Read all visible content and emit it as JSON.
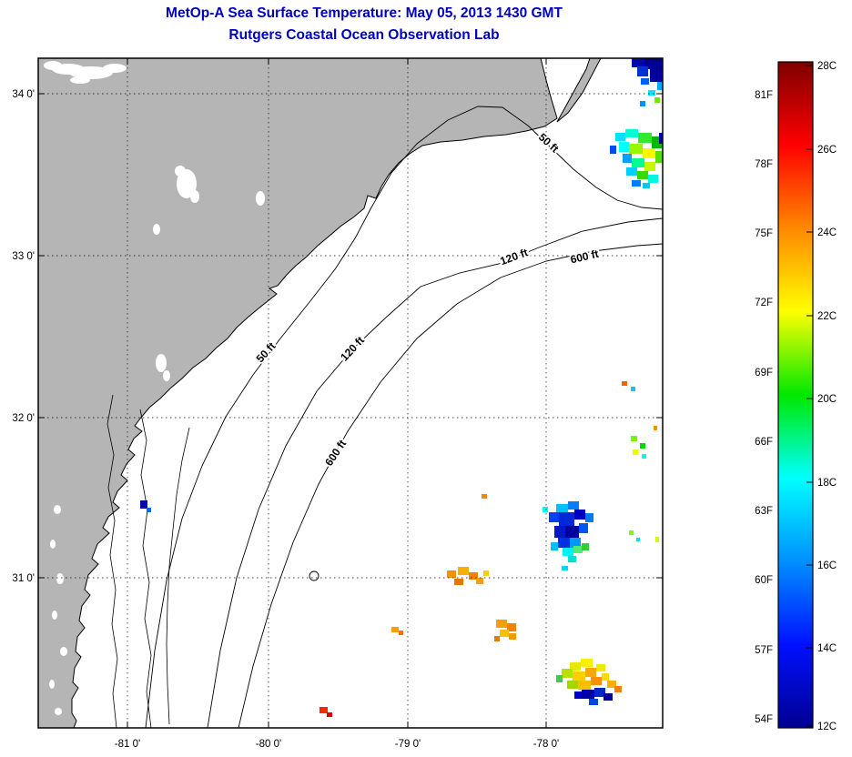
{
  "header": {
    "title": "MetOp-A Sea Surface Temperature:  May 05, 2013 1430 GMT",
    "subtitle": "Rutgers Coastal Ocean Observation Lab",
    "title_color": "#0000BF"
  },
  "map": {
    "land_color": "#b5b5b5",
    "x_ticks": [
      "-81 0'",
      "-80 0'",
      "-79 0'",
      "-78 0'"
    ],
    "y_ticks": [
      "34 0'",
      "33 0'",
      "32 0'",
      "31 0'"
    ],
    "contour_labels": [
      "50 ft",
      "50 ft",
      "120 ft",
      "120 ft",
      "600 ft",
      "600 ft"
    ],
    "sst_cells": [
      [
        694,
        64,
        14,
        10,
        "#0008A8"
      ],
      [
        708,
        64,
        20,
        12,
        "#000090"
      ],
      [
        700,
        73,
        12,
        11,
        "#0030D8"
      ],
      [
        714,
        76,
        14,
        14,
        "#0000A0"
      ],
      [
        722,
        90,
        6,
        9,
        "#00A8FF"
      ],
      [
        704,
        86,
        9,
        7,
        "#0060F0"
      ],
      [
        712,
        99,
        8,
        6,
        "#00E8FF"
      ],
      [
        719,
        107,
        6,
        6,
        "#70E800"
      ],
      [
        703,
        111,
        6,
        6,
        "#0090FF"
      ],
      [
        676,
        146,
        11,
        9,
        "#00E0FF"
      ],
      [
        687,
        142,
        14,
        9,
        "#00FFD8"
      ],
      [
        701,
        146,
        15,
        11,
        "#30E830"
      ],
      [
        716,
        150,
        12,
        13,
        "#00B800"
      ],
      [
        680,
        156,
        11,
        11,
        "#00FFFF"
      ],
      [
        691,
        158,
        15,
        11,
        "#98F800"
      ],
      [
        706,
        163,
        14,
        11,
        "#F8F800"
      ],
      [
        720,
        166,
        8,
        13,
        "#58E000"
      ],
      [
        684,
        169,
        10,
        10,
        "#00A0FF"
      ],
      [
        694,
        174,
        14,
        10,
        "#00FF90"
      ],
      [
        708,
        178,
        12,
        10,
        "#C8F800"
      ],
      [
        688,
        184,
        12,
        9,
        "#00D0FF"
      ],
      [
        700,
        188,
        12,
        9,
        "#38D800"
      ],
      [
        712,
        192,
        11,
        9,
        "#00F8E0"
      ],
      [
        694,
        198,
        10,
        7,
        "#0080FF"
      ],
      [
        706,
        201,
        8,
        6,
        "#00C8F0"
      ],
      [
        724,
        146,
        4,
        12,
        "#0000A8"
      ],
      [
        670,
        160,
        7,
        9,
        "#0048F0"
      ],
      [
        683,
        419,
        6,
        5,
        "#F86000"
      ],
      [
        693,
        425,
        5,
        5,
        "#00C8F8"
      ],
      [
        693,
        479,
        7,
        6,
        "#78F800"
      ],
      [
        703,
        487,
        6,
        6,
        "#00D800"
      ],
      [
        695,
        494,
        6,
        6,
        "#F8F800"
      ],
      [
        705,
        499,
        5,
        5,
        "#00F8F8"
      ],
      [
        718,
        468,
        4,
        5,
        "#F89000"
      ],
      [
        691,
        583,
        5,
        5,
        "#88F800"
      ],
      [
        699,
        591,
        4,
        4,
        "#00E0F8"
      ],
      [
        720,
        590,
        4,
        6,
        "#D8F800"
      ],
      [
        611,
        554,
        13,
        9,
        "#00C0F8"
      ],
      [
        624,
        551,
        12,
        9,
        "#0080F8"
      ],
      [
        603,
        563,
        11,
        11,
        "#0040F0"
      ],
      [
        614,
        563,
        17,
        15,
        "#0028D8"
      ],
      [
        631,
        560,
        12,
        11,
        "#0000C0"
      ],
      [
        643,
        564,
        9,
        10,
        "#0078F8"
      ],
      [
        609,
        578,
        12,
        13,
        "#0018C8"
      ],
      [
        621,
        578,
        15,
        13,
        "#0000A0"
      ],
      [
        636,
        575,
        10,
        11,
        "#0058F0"
      ],
      [
        613,
        591,
        13,
        11,
        "#0030E0"
      ],
      [
        626,
        591,
        12,
        11,
        "#0098F8"
      ],
      [
        605,
        596,
        8,
        9,
        "#00C0F8"
      ],
      [
        618,
        602,
        12,
        9,
        "#00F0F8"
      ],
      [
        630,
        600,
        10,
        8,
        "#50E878"
      ],
      [
        639,
        597,
        8,
        8,
        "#30D030"
      ],
      [
        624,
        611,
        9,
        7,
        "#00E0D0"
      ],
      [
        596,
        557,
        6,
        6,
        "#00F8F8"
      ],
      [
        617,
        622,
        7,
        5,
        "#00D8F0"
      ],
      [
        491,
        627,
        10,
        8,
        "#F89000"
      ],
      [
        503,
        623,
        12,
        9,
        "#F8B000"
      ],
      [
        515,
        629,
        10,
        8,
        "#F88000"
      ],
      [
        499,
        636,
        10,
        7,
        "#E07800"
      ],
      [
        523,
        635,
        8,
        7,
        "#F8A000"
      ],
      [
        531,
        627,
        6,
        6,
        "#F8D000"
      ],
      [
        529,
        543,
        6,
        5,
        "#F88800"
      ],
      [
        545,
        681,
        12,
        9,
        "#F8A000"
      ],
      [
        557,
        685,
        10,
        9,
        "#F88000"
      ],
      [
        549,
        692,
        10,
        8,
        "#F8C000"
      ],
      [
        559,
        696,
        8,
        7,
        "#F89800"
      ],
      [
        543,
        699,
        6,
        6,
        "#E08000"
      ],
      [
        430,
        689,
        8,
        6,
        "#F8A000"
      ],
      [
        438,
        693,
        5,
        5,
        "#F87000"
      ],
      [
        626,
        728,
        12,
        9,
        "#E8E800"
      ],
      [
        638,
        724,
        13,
        9,
        "#F8F000"
      ],
      [
        617,
        735,
        12,
        10,
        "#B8E000"
      ],
      [
        629,
        738,
        14,
        10,
        "#F8D000"
      ],
      [
        643,
        734,
        12,
        10,
        "#F8A800"
      ],
      [
        655,
        730,
        10,
        8,
        "#F0E800"
      ],
      [
        611,
        742,
        7,
        8,
        "#48C848"
      ],
      [
        623,
        748,
        12,
        9,
        "#A0D800"
      ],
      [
        635,
        748,
        14,
        10,
        "#F8C000"
      ],
      [
        649,
        744,
        12,
        9,
        "#F89000"
      ],
      [
        661,
        740,
        8,
        8,
        "#F8DC00"
      ],
      [
        667,
        748,
        10,
        8,
        "#F8B000"
      ],
      [
        675,
        754,
        8,
        7,
        "#F88000"
      ],
      [
        639,
        758,
        14,
        10,
        "#0000A8"
      ],
      [
        653,
        756,
        12,
        10,
        "#0028C8"
      ],
      [
        631,
        760,
        8,
        8,
        "#0000C8"
      ],
      [
        663,
        762,
        10,
        8,
        "#000098"
      ],
      [
        647,
        768,
        10,
        7,
        "#0048D8"
      ],
      [
        351,
        777,
        9,
        7,
        "#F82800"
      ],
      [
        359,
        783,
        6,
        5,
        "#E00000"
      ],
      [
        154,
        550,
        8,
        9,
        "#0000B0"
      ],
      [
        161,
        558,
        5,
        5,
        "#0068F8"
      ]
    ]
  },
  "colorbar": {
    "fahrenheit_labels": [
      "81F",
      "78F",
      "75F",
      "72F",
      "69F",
      "66F",
      "63F",
      "60F",
      "57F",
      "54F"
    ],
    "celsius_labels": [
      "28C",
      "26C",
      "24C",
      "22C",
      "20C",
      "18C",
      "16C",
      "14C",
      "12C"
    ],
    "gradient": [
      [
        "0%",
        "#7F0000"
      ],
      [
        "12.5%",
        "#FF0000"
      ],
      [
        "25%",
        "#FF8800"
      ],
      [
        "37.5%",
        "#FFFF00"
      ],
      [
        "50%",
        "#00E800"
      ],
      [
        "62.5%",
        "#00FFFF"
      ],
      [
        "75%",
        "#0090FF"
      ],
      [
        "87.5%",
        "#0010FF"
      ],
      [
        "100%",
        "#000090"
      ]
    ]
  },
  "chart_data": {
    "type": "heatmap",
    "title": "MetOp-A Sea Surface Temperature:  May 05, 2013 1430 GMT",
    "subtitle": "Rutgers Coastal Ocean Observation Lab",
    "colorbar_range_celsius": [
      12,
      28
    ],
    "colorbar_ticks_celsius": [
      28,
      26,
      24,
      22,
      20,
      18,
      16,
      14,
      12
    ],
    "colorbar_ticks_fahrenheit": [
      81,
      78,
      75,
      72,
      69,
      66,
      63,
      60,
      57,
      54
    ],
    "depth_contours_ft": [
      50,
      120,
      600
    ],
    "longitude_ticks": [
      "-81 0'",
      "-80 0'",
      "-79 0'",
      "-78 0'"
    ],
    "latitude_ticks": [
      "34 0'",
      "33 0'",
      "32 0'",
      "31 0'"
    ],
    "legend_position": "right",
    "grid": "dotted"
  }
}
